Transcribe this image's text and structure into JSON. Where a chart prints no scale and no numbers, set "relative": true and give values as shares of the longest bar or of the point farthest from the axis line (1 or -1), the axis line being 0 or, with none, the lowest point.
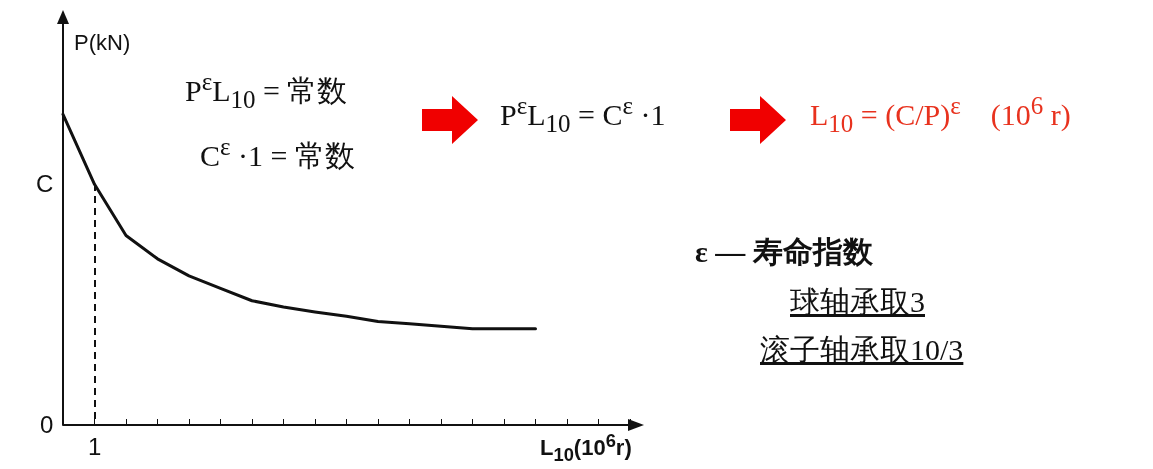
{
  "chart_data": {
    "type": "line",
    "xlabel": "L$_{10}$(10$^{6}$r)",
    "ylabel": "P(kN)",
    "categories": [
      null,
      null,
      null,
      null,
      null,
      null,
      null,
      null,
      null,
      null,
      null,
      null,
      null,
      null,
      null,
      null,
      null,
      null,
      null
    ],
    "relative": true,
    "series": [
      {
        "color": "#111111",
        "values": [
          1,
          0.775,
          0.61,
          0.535,
          0.48,
          0.44,
          0.4,
          0.38,
          0.364,
          0.35,
          0.333,
          0.326,
          0.318,
          0.31,
          0.31,
          0.31,
          null,
          null,
          null
        ]
      }
    ],
    "grid": false,
    "marker": "none",
    "line_style": "solid",
    "annotations": [
      "0",
      "C",
      "1",
      "P$^{ε}$L$_{10}$ = 常数",
      "C$^{ε}$ ·1 = 常数",
      "P$^{ε}$L$_{10}$ = C$^{ε}$ ·1",
      "L$_{10}$ = (C/P)$^{ε}$　(10$^{6}$ r)",
      "ε — 寿命指数",
      "球轴承取3",
      "滚子轴承取10/3"
    ]
  }
}
